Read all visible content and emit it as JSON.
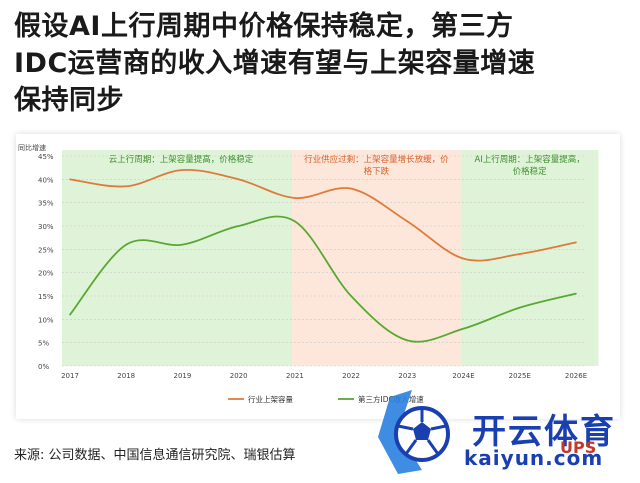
{
  "page": {
    "title_lines": [
      "假设AI上行周期中价格保持稳定，第三方",
      "IDC运营商的收入增速有望与上架容量增速",
      "保持同步"
    ],
    "source": "来源: 公司数据、中国信息通信研究院、瑞银估算"
  },
  "logo": {
    "text_zh": "开云体育",
    "text_en": "kaiyun.com",
    "text_mark": "UPS"
  },
  "chart_data": {
    "type": "line",
    "ylabel": "同比增速",
    "categories": [
      "2017",
      "2018",
      "2019",
      "2020",
      "2021",
      "2022",
      "2023",
      "2024E",
      "2025E",
      "2026E"
    ],
    "y_ticks": [
      "0%",
      "5%",
      "10%",
      "15%",
      "20%",
      "25%",
      "30%",
      "35%",
      "40%",
      "45%"
    ],
    "ylim": [
      0,
      45
    ],
    "grid": true,
    "legend_position": "bottom",
    "series": [
      {
        "name": "行业上架容量",
        "color": "#e07a3a",
        "values": [
          40,
          38.5,
          42,
          40,
          36,
          38,
          31,
          23,
          24,
          26.5
        ]
      },
      {
        "name": "第三方IDC收入增速",
        "color": "#5aa832",
        "values": [
          11,
          26,
          26,
          30,
          31,
          15,
          5.5,
          8,
          12.5,
          15.5
        ]
      }
    ],
    "phases": [
      {
        "label": "云上行周期：上架容量提高，价格稳定",
        "from": 0,
        "to": 3.95,
        "color": "#dff3d8",
        "text_color": "#3e8f2e"
      },
      {
        "label": "行业供应过剩：上架容量增长放缓，价格下跌",
        "from": 3.95,
        "to": 6.95,
        "color": "#fde6da",
        "text_color": "#d9622b"
      },
      {
        "label": "AI上行周期：上架容量提高，价格稳定",
        "from": 6.95,
        "to": 9.4,
        "color": "#dff3d8",
        "text_color": "#3e8f2e"
      }
    ]
  }
}
